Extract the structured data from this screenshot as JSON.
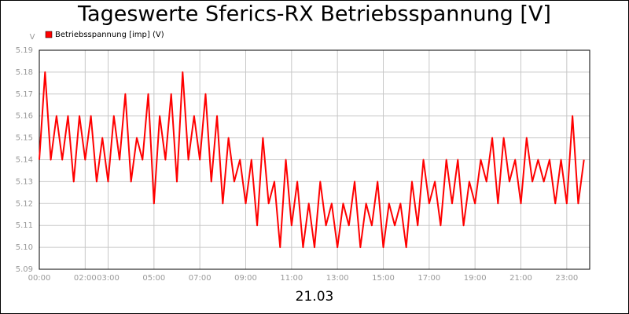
{
  "chart_data": {
    "type": "line",
    "title": "Tageswerte Sferics-RX Betriebsspannung [V]",
    "ylabel": "V",
    "xlabel": "21.03",
    "xlim": [
      0,
      24
    ],
    "xticks": [
      {
        "value": 0,
        "label": "00:00"
      },
      {
        "value": 2,
        "label": "02:00"
      },
      {
        "value": 3,
        "label": "03:00"
      },
      {
        "value": 5,
        "label": "05:00"
      },
      {
        "value": 7,
        "label": "07:00"
      },
      {
        "value": 9,
        "label": "09:00"
      },
      {
        "value": 11,
        "label": "11:00"
      },
      {
        "value": 13,
        "label": "13:00"
      },
      {
        "value": 15,
        "label": "15:00"
      },
      {
        "value": 17,
        "label": "17:00"
      },
      {
        "value": 19,
        "label": "19:00"
      },
      {
        "value": 21,
        "label": "21:00"
      },
      {
        "value": 23,
        "label": "23:00"
      }
    ],
    "ylim": [
      5.09,
      5.19
    ],
    "yticks": [
      5.09,
      {
        "value": 5.1,
        "label": "5.10"
      },
      5.11,
      5.12,
      5.13,
      5.14,
      5.15,
      5.16,
      5.17,
      5.18,
      5.19
    ],
    "grid": true,
    "legend": "top-left",
    "x": [
      0,
      0.25,
      0.5,
      0.75,
      1,
      1.25,
      1.5,
      1.75,
      2,
      2.25,
      2.5,
      2.75,
      3,
      3.25,
      3.5,
      3.75,
      4,
      4.25,
      4.5,
      4.75,
      5,
      5.25,
      5.5,
      5.75,
      6,
      6.25,
      6.5,
      6.75,
      7,
      7.25,
      7.5,
      7.75,
      8,
      8.25,
      8.5,
      8.75,
      9,
      9.25,
      9.5,
      9.75,
      10,
      10.25,
      10.5,
      10.75,
      11,
      11.25,
      11.5,
      11.75,
      12,
      12.25,
      12.5,
      12.75,
      13,
      13.25,
      13.5,
      13.75,
      14,
      14.25,
      14.5,
      14.75,
      15,
      15.25,
      15.5,
      15.75,
      16,
      16.25,
      16.5,
      16.75,
      17,
      17.25,
      17.5,
      17.75,
      18,
      18.25,
      18.5,
      18.75,
      19,
      19.25,
      19.5,
      19.75,
      20,
      20.25,
      20.5,
      20.75,
      21,
      21.25,
      21.5,
      21.75,
      22,
      22.25,
      22.5,
      22.75,
      23,
      23.25,
      23.5,
      23.75
    ],
    "series": [
      {
        "name": "Betriebsspannung [imp] (V)",
        "color": "#ff0000",
        "values": [
          5.14,
          5.18,
          5.14,
          5.16,
          5.14,
          5.16,
          5.13,
          5.16,
          5.14,
          5.16,
          5.13,
          5.15,
          5.13,
          5.16,
          5.14,
          5.17,
          5.13,
          5.15,
          5.14,
          5.17,
          5.12,
          5.16,
          5.14,
          5.17,
          5.13,
          5.18,
          5.14,
          5.16,
          5.14,
          5.17,
          5.13,
          5.16,
          5.12,
          5.15,
          5.13,
          5.14,
          5.12,
          5.14,
          5.11,
          5.15,
          5.12,
          5.13,
          5.1,
          5.14,
          5.11,
          5.13,
          5.1,
          5.12,
          5.1,
          5.13,
          5.11,
          5.12,
          5.1,
          5.12,
          5.11,
          5.13,
          5.1,
          5.12,
          5.11,
          5.13,
          5.1,
          5.12,
          5.11,
          5.12,
          5.1,
          5.13,
          5.11,
          5.14,
          5.12,
          5.13,
          5.11,
          5.14,
          5.12,
          5.14,
          5.11,
          5.13,
          5.12,
          5.14,
          5.13,
          5.15,
          5.12,
          5.15,
          5.13,
          5.14,
          5.12,
          5.15,
          5.13,
          5.14,
          5.13,
          5.14,
          5.12,
          5.14,
          5.12,
          5.16,
          5.12,
          5.14
        ]
      }
    ]
  }
}
